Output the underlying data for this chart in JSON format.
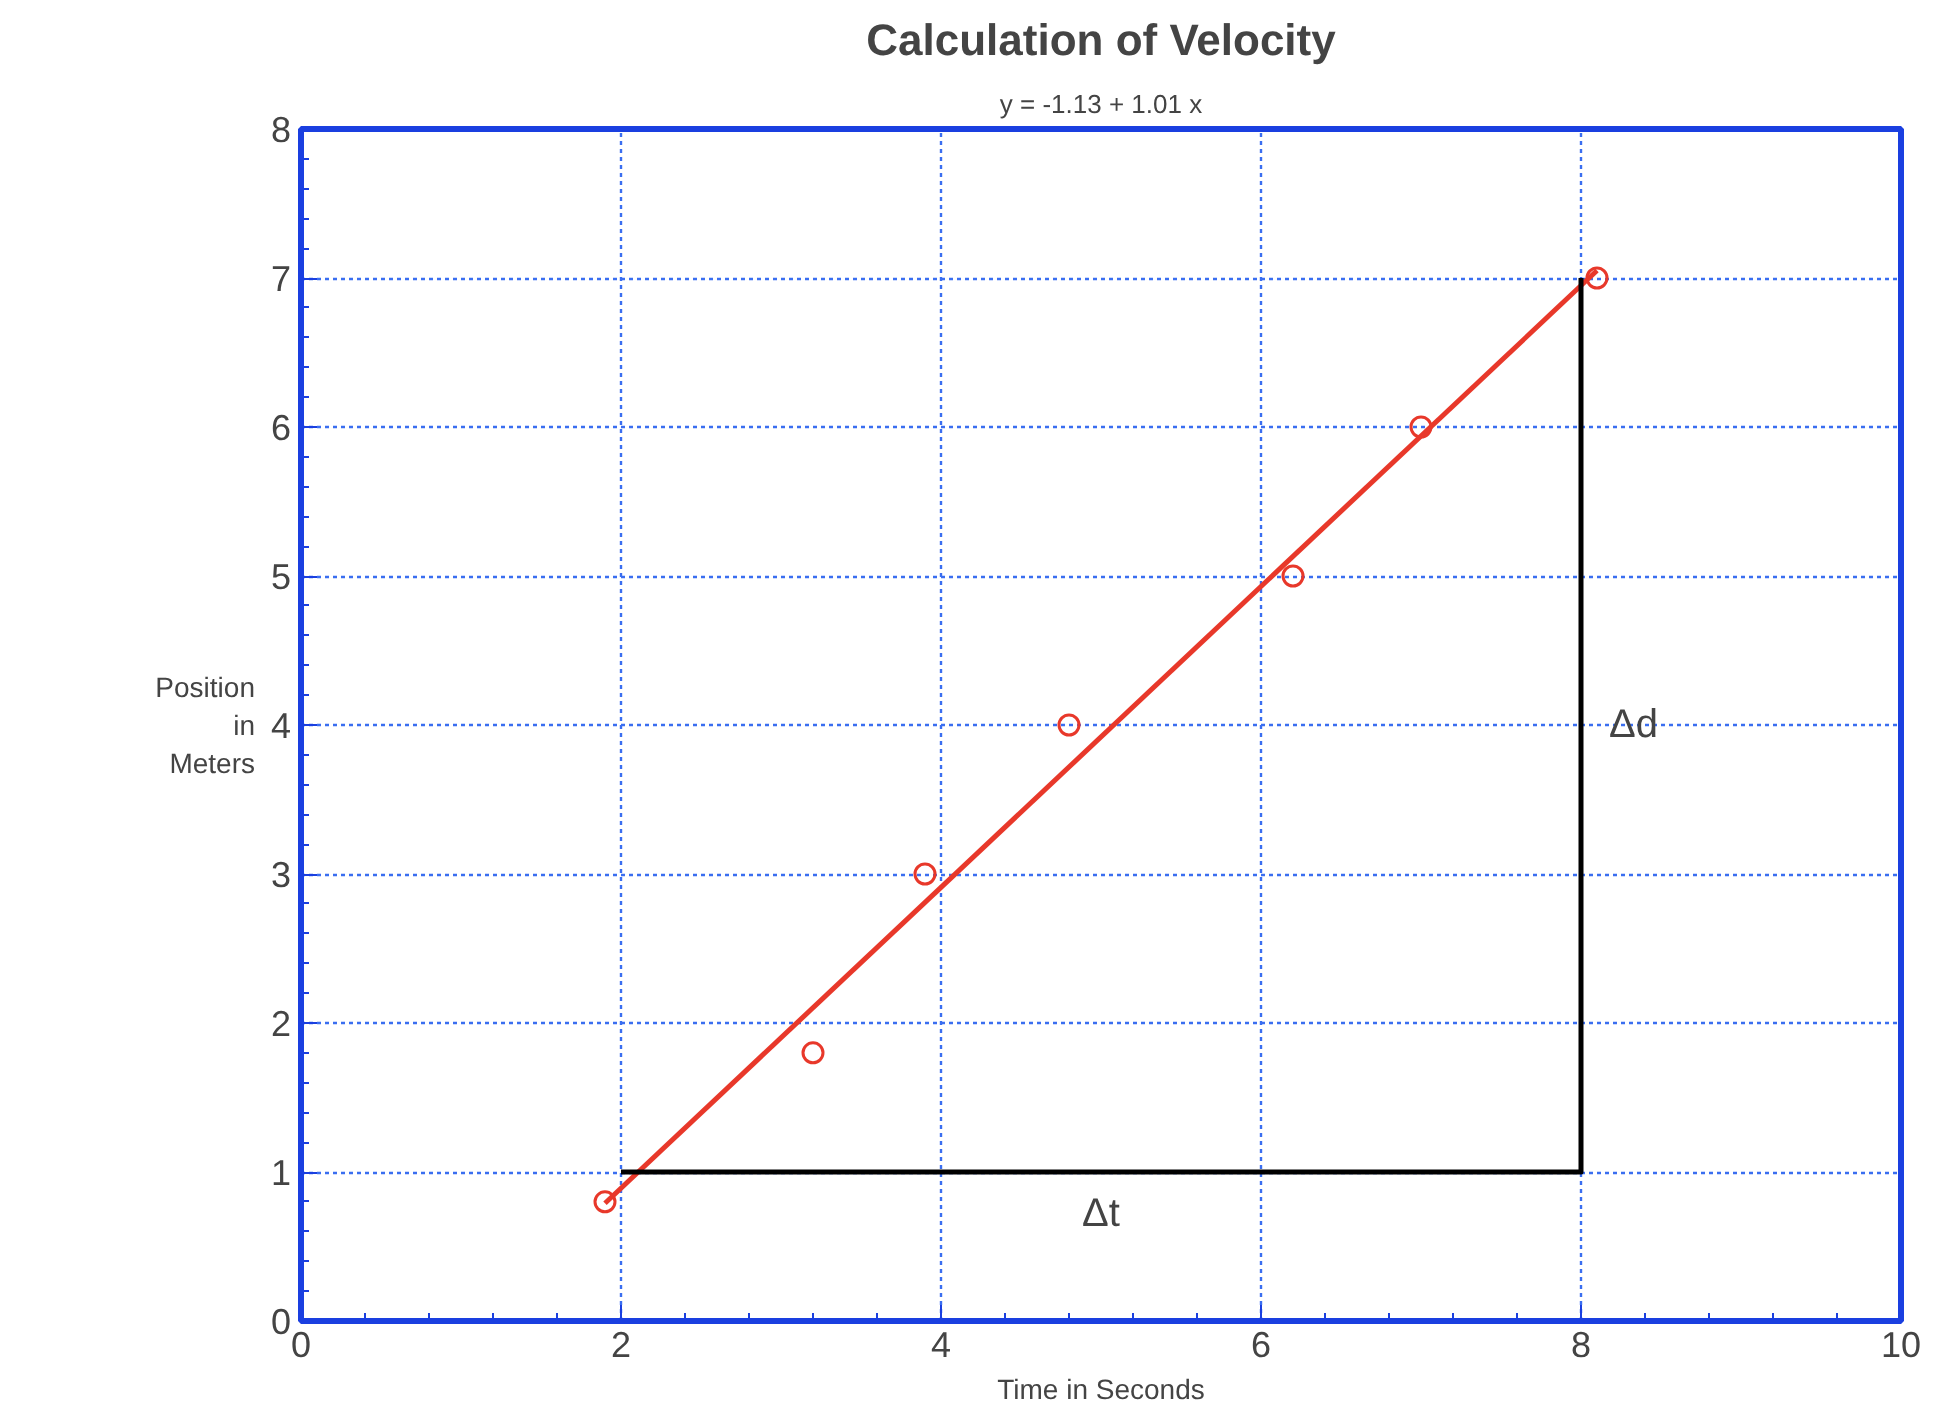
{
  "chart_data": {
    "type": "scatter",
    "title": "Calculation of Velocity",
    "subtitle": "y = -1.13 + 1.01 x",
    "xlabel": "Time in Seconds",
    "ylabel": "Position\nin\nMeters",
    "xlim": [
      0,
      10
    ],
    "ylim": [
      0,
      8
    ],
    "xticks": [
      0,
      2,
      4,
      6,
      8,
      10
    ],
    "yticks": [
      0,
      1,
      2,
      3,
      4,
      5,
      6,
      7,
      8
    ],
    "grid": true,
    "series": [
      {
        "color": "#e8382a",
        "marker": "circle",
        "x": [
          1.9,
          3.2,
          3.9,
          4.8,
          6.2,
          7.0,
          8.1
        ],
        "values": [
          0.8,
          1.8,
          3.0,
          4.0,
          5.0,
          6.0,
          7.0
        ]
      },
      {
        "type": "line",
        "color": "#e8382a",
        "x": [
          1.9,
          8.1
        ],
        "values": [
          0.79,
          7.05
        ]
      },
      {
        "type": "line",
        "color": "#000000",
        "x": [
          2,
          8,
          8
        ],
        "values": [
          1,
          1,
          7
        ]
      }
    ],
    "annotations": [
      "Δt",
      "Δd"
    ]
  }
}
